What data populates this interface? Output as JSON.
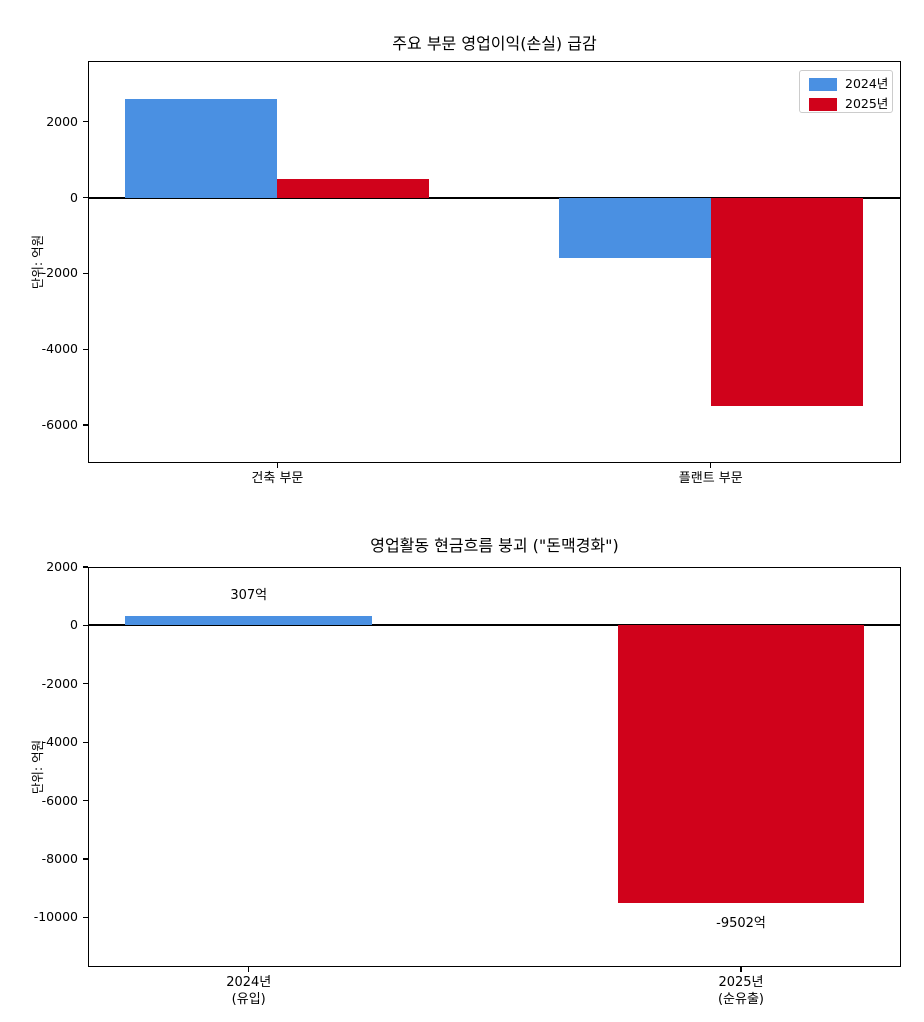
{
  "background_color": "#ffffff",
  "accent_colors": {
    "year_2024": "#4a90e2",
    "year_2025": "#d0021b",
    "axis": "#000000"
  },
  "chart_data": [
    {
      "type": "bar",
      "title": "주요 부문 영업이익(손실) 급감",
      "ylabel": "단위: 억원",
      "categories": [
        "건축 부문",
        "플랜트 부문"
      ],
      "series": [
        {
          "name": "2024년",
          "color": "#4a90e2",
          "values": [
            2600,
            -1600
          ]
        },
        {
          "name": "2025년",
          "color": "#d0021b",
          "values": [
            500,
            -5500
          ]
        }
      ],
      "ylim": [
        -7000,
        3600
      ],
      "yticks": [
        2000,
        0,
        -2000,
        -4000,
        -6000
      ],
      "zero_line": true,
      "grid": false,
      "legend": {
        "position": "upper right",
        "entries": [
          "2024년",
          "2025년"
        ]
      }
    },
    {
      "type": "bar",
      "title": "영업활동 현금흐름 붕괴 (\"돈맥경화\")",
      "ylabel": "단위: 억원",
      "categories": [
        [
          "2024년",
          "(유입)"
        ],
        [
          "2025년",
          "(순유출)"
        ]
      ],
      "values": [
        307,
        -9502
      ],
      "colors": [
        "#4a90e2",
        "#d0021b"
      ],
      "bar_labels": [
        "307억",
        "-9502억"
      ],
      "ylim": [
        -11700,
        2000
      ],
      "yticks": [
        2000,
        0,
        -2000,
        -4000,
        -6000,
        -8000,
        -10000
      ],
      "zero_line": true,
      "grid": false,
      "legend": null
    }
  ]
}
